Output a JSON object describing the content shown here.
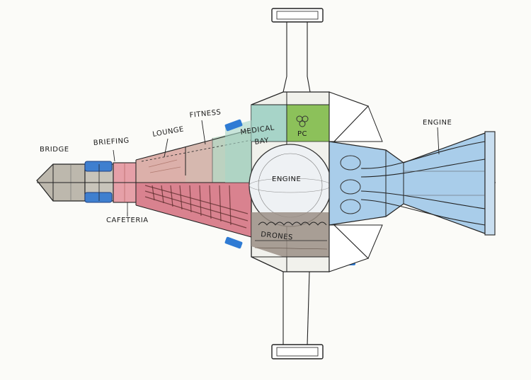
{
  "labels": {
    "bridge": "BRIDGE",
    "briefing": "BRIEFING",
    "lounge": "LOUNGE",
    "fitness": "FITNESS",
    "medical_bay_1": "MEDICAL",
    "medical_bay_2": "BAY",
    "pc": "PC",
    "engine_core": "ENGINE",
    "engine_rear": "ENGINE",
    "cafeteria": "CAFETERIA",
    "drones": "DRONES"
  },
  "colors": {
    "paper": "#fbfbf8",
    "ink": "#222222",
    "bridge_gray": "#bdb8ad",
    "briefing_blue": "#3f7fcf",
    "cafeteria_pink": "#e6a0a8",
    "lounge_red": "#dca4a0",
    "fitness_green": "#b9d5c2",
    "medical_teal": "#9fd0c4",
    "pc_green": "#8cc15a",
    "engine_blue": "#a9cdea",
    "hall_red": "#d9828f",
    "drones_brown": "#9b8f86",
    "pad_blue": "#2f7bd4"
  }
}
